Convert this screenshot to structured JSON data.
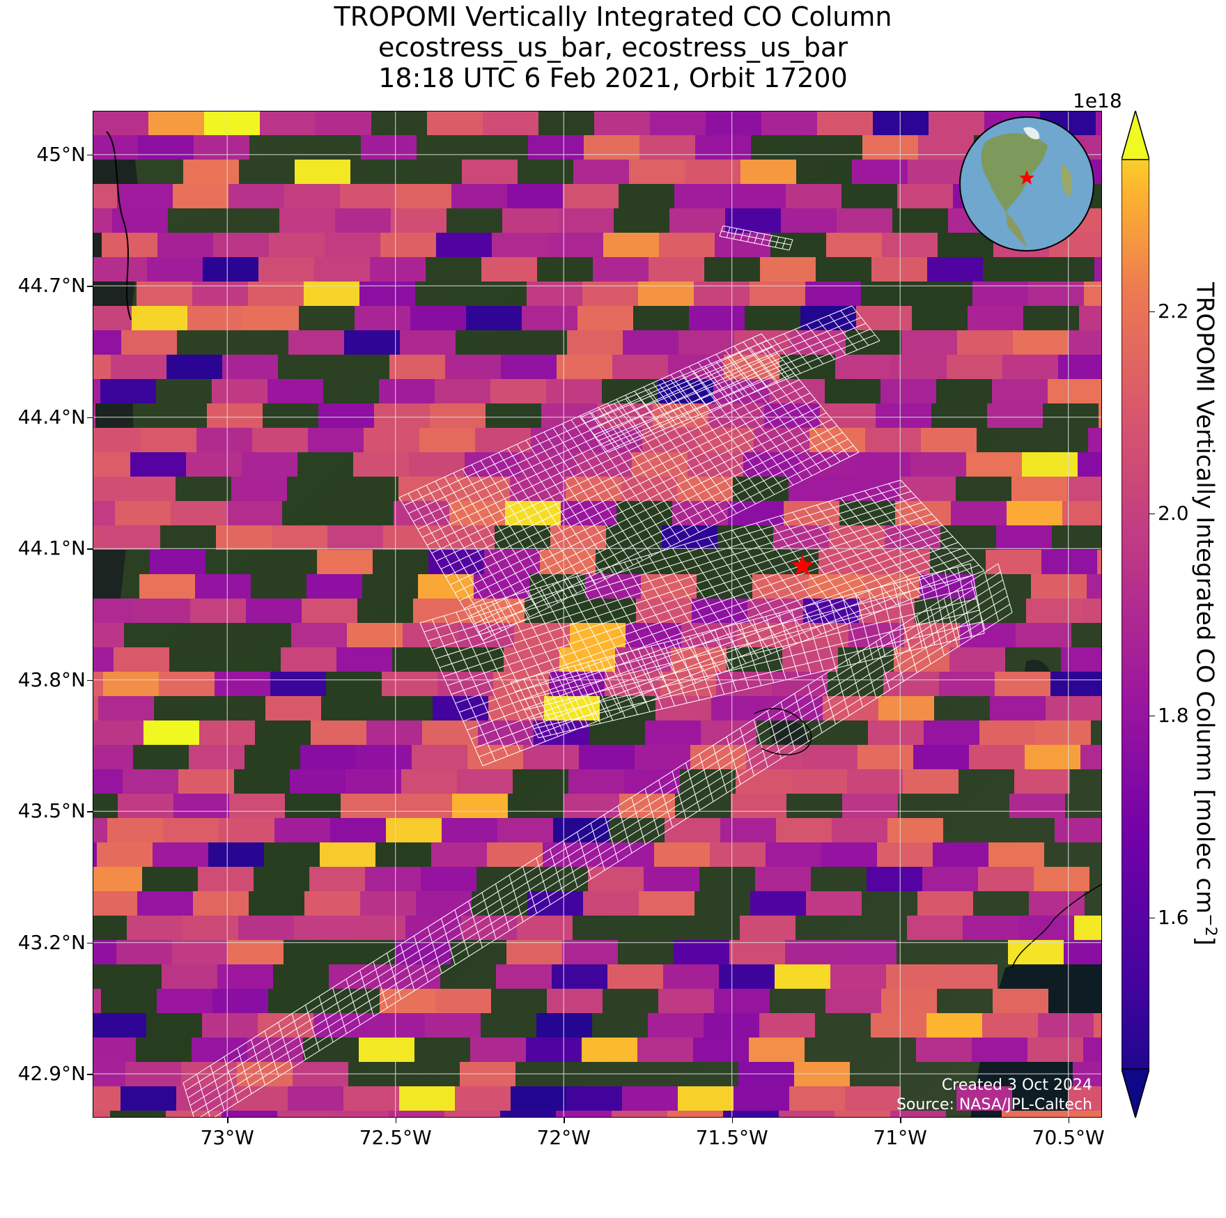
{
  "title": {
    "line1": "TROPOMI Vertically Integrated CO Column",
    "line2": "ecostress_us_bar, ecostress_us_bar",
    "line3": "18:18 UTC 6 Feb 2021, Orbit 17200"
  },
  "map": {
    "lon_range": [
      -73.4,
      -70.4
    ],
    "lat_range": [
      42.8,
      45.1
    ],
    "lat_ticks": [
      "45°N",
      "44.7°N",
      "44.4°N",
      "44.1°N",
      "43.8°N",
      "43.5°N",
      "43.2°N",
      "42.9°N"
    ],
    "lat_tick_values": [
      45.0,
      44.7,
      44.4,
      44.1,
      43.8,
      43.5,
      43.2,
      42.9
    ],
    "lon_ticks": [
      "73°W",
      "72.5°W",
      "72°W",
      "71.5°W",
      "71°W",
      "70.5°W"
    ],
    "lon_tick_values": [
      -73.0,
      -72.5,
      -72.0,
      -71.5,
      -71.0,
      -70.5
    ],
    "gridlines": true,
    "basemap": "satellite imagery",
    "target_marker": {
      "icon": "red-star-icon",
      "lon": -71.29,
      "lat": 44.06,
      "color": "#ff0000"
    },
    "ecostress_footprint_color": "#ffffff",
    "coastline_color": "#000000"
  },
  "colorbar": {
    "label": "TROPOMI Vertically Integrated CO Column [molec cm",
    "label_sup": "−2",
    "label_end": "]",
    "exponent": "1e18",
    "range": [
      1.45,
      2.35
    ],
    "ticks": [
      "1.6",
      "1.8",
      "2.0",
      "2.2"
    ],
    "tick_values": [
      1.6,
      1.8,
      2.0,
      2.2
    ],
    "colormap": "plasma",
    "extend": "both"
  },
  "inset": {
    "icon": "globe-icon",
    "marker_color": "#ff0000",
    "region": "North America"
  },
  "credits": {
    "created": "Created 3 Oct 2024",
    "source": "Source: NASA/JPL-Caltech"
  }
}
